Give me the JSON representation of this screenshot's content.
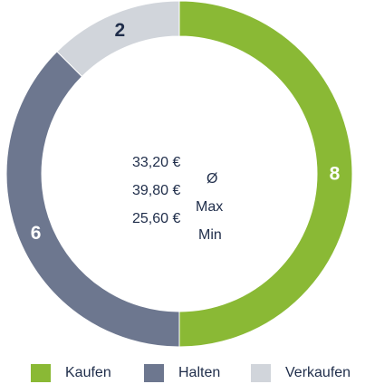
{
  "chart_data": {
    "type": "pie",
    "style": "donut",
    "categories": [
      "Kaufen",
      "Halten",
      "Verkaufen"
    ],
    "values": [
      8,
      6,
      2
    ],
    "colors": [
      "#8ab935",
      "#6d778f",
      "#d1d5db"
    ],
    "data_label_colors": [
      "#ffffff",
      "#ffffff",
      "#1f2d4a"
    ],
    "legend_position": "bottom",
    "title": "",
    "center_stats": [
      {
        "value": "33,20 €",
        "label": "Ø"
      },
      {
        "value": "39,80 €",
        "label": "Max"
      },
      {
        "value": "25,60 €",
        "label": "Min"
      }
    ]
  }
}
